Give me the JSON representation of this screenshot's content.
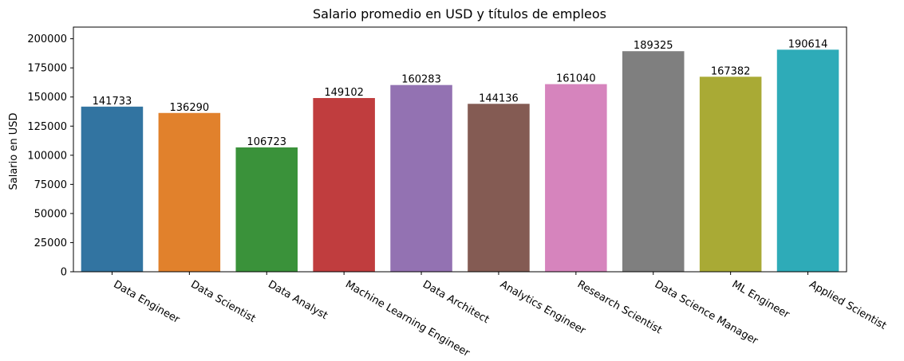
{
  "chart_data": {
    "type": "bar",
    "title": "Salario promedio en USD y títulos de empleos",
    "xlabel": "",
    "ylabel": "Salario en USD",
    "ylim": [
      0,
      210000
    ],
    "yticks": [
      0,
      25000,
      50000,
      75000,
      100000,
      125000,
      150000,
      175000,
      200000
    ],
    "grid": false,
    "categories": [
      "Data Engineer",
      "Data Scientist",
      "Data Analyst",
      "Machine Learning Engineer",
      "Data Architect",
      "Analytics Engineer",
      "Research Scientist",
      "Data Science Manager",
      "ML Engineer",
      "Applied Scientist"
    ],
    "values": [
      141733,
      136290,
      106723,
      149102,
      160283,
      144136,
      161040,
      189325,
      167382,
      190614
    ],
    "colors": [
      "#3274a1",
      "#e1812c",
      "#3a923a",
      "#c03d3e",
      "#9372b2",
      "#845b53",
      "#d684bd",
      "#7f7f7f",
      "#a9aa35",
      "#2eabb8"
    ]
  }
}
